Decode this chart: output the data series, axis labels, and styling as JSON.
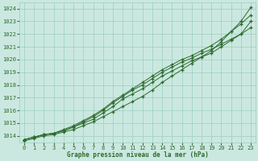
{
  "x": [
    0,
    1,
    2,
    3,
    4,
    5,
    6,
    7,
    8,
    9,
    10,
    11,
    12,
    13,
    14,
    15,
    16,
    17,
    18,
    19,
    20,
    21,
    22,
    23
  ],
  "line1": [
    1013.7,
    1013.9,
    1014.1,
    1014.2,
    1014.4,
    1014.7,
    1015.1,
    1015.5,
    1016.0,
    1016.6,
    1017.1,
    1017.6,
    1018.0,
    1018.5,
    1019.0,
    1019.4,
    1019.8,
    1020.1,
    1020.5,
    1020.8,
    1021.2,
    1021.6,
    1022.0,
    1022.5
  ],
  "line2": [
    1013.7,
    1013.9,
    1014.1,
    1014.2,
    1014.4,
    1014.7,
    1015.0,
    1015.3,
    1015.8,
    1016.3,
    1016.9,
    1017.3,
    1017.7,
    1018.2,
    1018.7,
    1019.1,
    1019.5,
    1019.9,
    1020.2,
    1020.5,
    1021.0,
    1021.5,
    1022.0,
    1023.0
  ],
  "line3": [
    1013.7,
    1013.9,
    1014.1,
    1014.2,
    1014.5,
    1014.8,
    1015.2,
    1015.6,
    1016.1,
    1016.7,
    1017.2,
    1017.7,
    1018.2,
    1018.7,
    1019.2,
    1019.6,
    1020.0,
    1020.3,
    1020.7,
    1021.1,
    1021.6,
    1022.2,
    1022.8,
    1023.5
  ],
  "line4": [
    1013.6,
    1013.8,
    1014.0,
    1014.1,
    1014.3,
    1014.5,
    1014.8,
    1015.1,
    1015.5,
    1015.9,
    1016.3,
    1016.7,
    1017.1,
    1017.6,
    1018.2,
    1018.7,
    1019.2,
    1019.7,
    1020.2,
    1020.7,
    1021.4,
    1022.2,
    1023.0,
    1024.1
  ],
  "line_color": "#2d6a2d",
  "bg_color": "#cbe8e0",
  "grid_color": "#9dcec0",
  "xlabel": "Graphe pression niveau de la mer (hPa)",
  "ylim": [
    1013.5,
    1024.5
  ],
  "xlim": [
    -0.5,
    23.5
  ],
  "yticks": [
    1014,
    1015,
    1016,
    1017,
    1018,
    1019,
    1020,
    1021,
    1022,
    1023,
    1024
  ],
  "xticks": [
    0,
    1,
    2,
    3,
    4,
    5,
    6,
    7,
    8,
    9,
    10,
    11,
    12,
    13,
    14,
    15,
    16,
    17,
    18,
    19,
    20,
    21,
    22,
    23
  ]
}
